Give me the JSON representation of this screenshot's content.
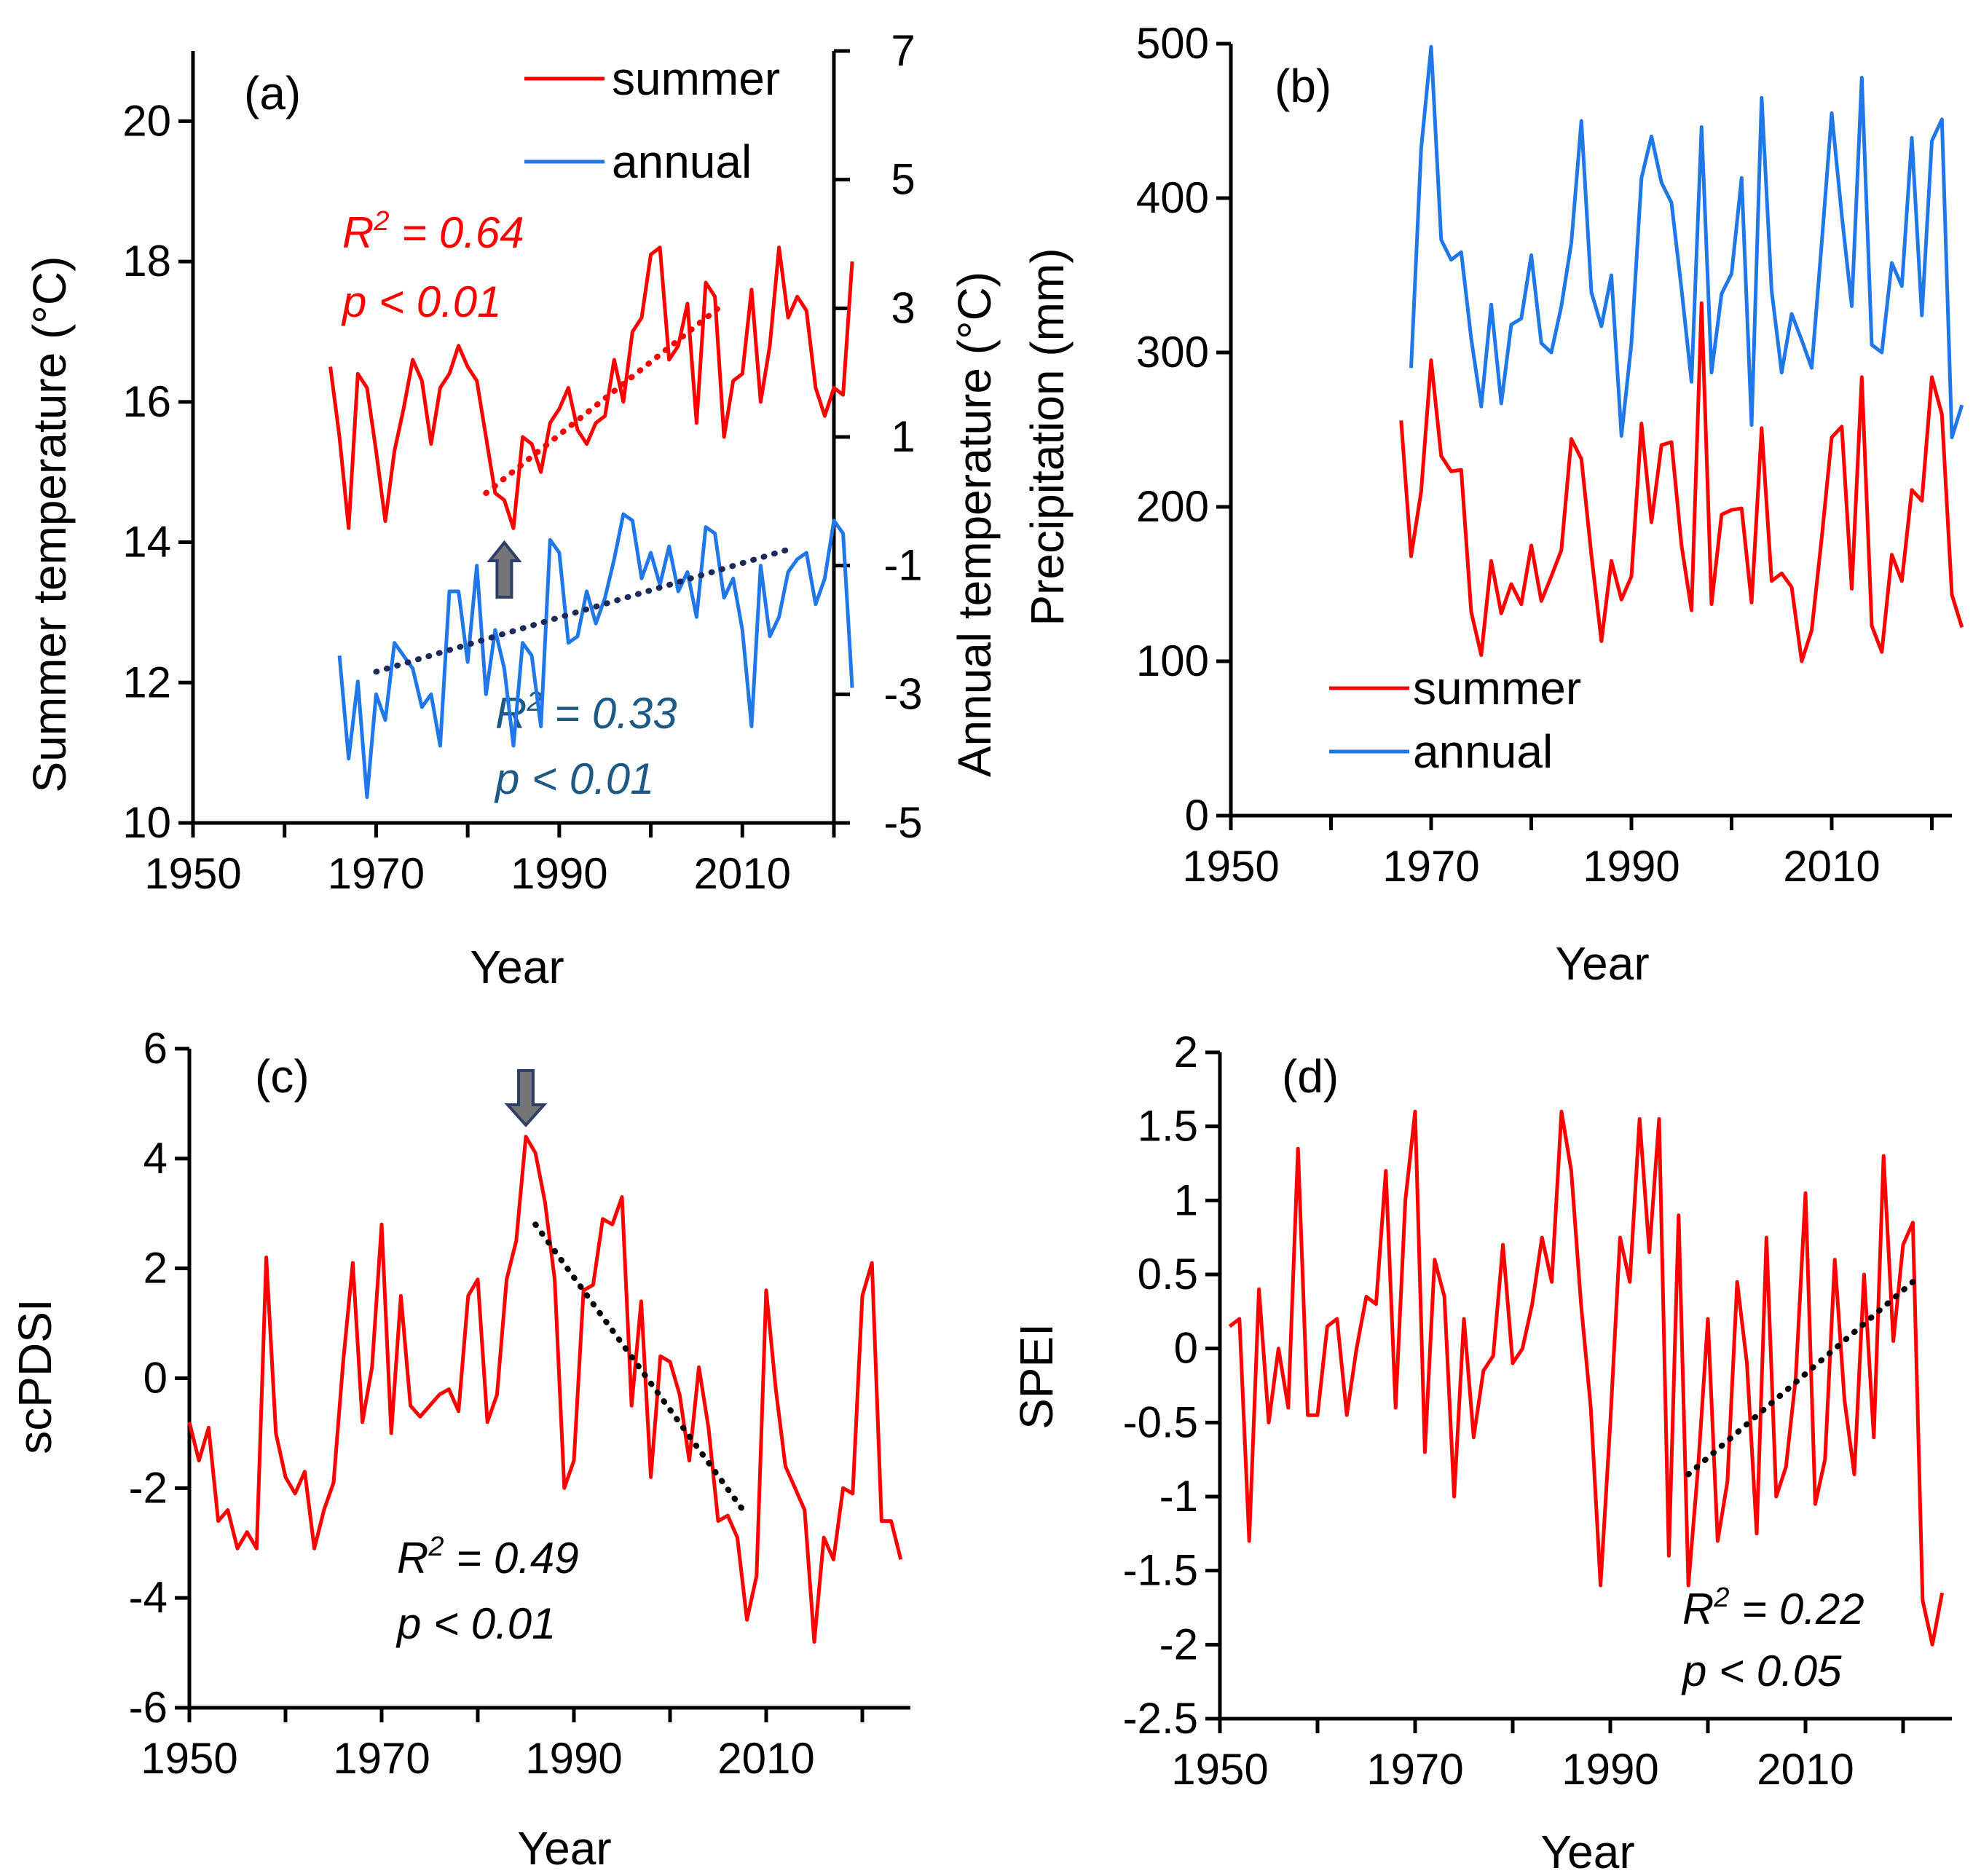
{
  "figure": {
    "description_colors": {
      "summer": "#ff0000",
      "annual": "#1f77e8",
      "trend_dark": "#1b2a5a",
      "annual_stat": "#1f5a86",
      "arrow": "#757575",
      "axis": "#000000"
    }
  },
  "chart_data": [
    {
      "id": "a",
      "type": "line",
      "panel_label": "(a)",
      "xlabel": "Year",
      "ylabel": "Summer temperature (°C)",
      "ylabel_right": "Annual temperature (°C)",
      "xlim": [
        1950,
        2020
      ],
      "ylim": [
        10,
        21
      ],
      "ylim_right": [
        -5,
        7
      ],
      "x_ticks": [
        "1950",
        "1970",
        "1990",
        "2010"
      ],
      "y_ticks": [
        "10",
        "12",
        "14",
        "16",
        "18",
        "20"
      ],
      "y_ticks_right": [
        "-5",
        "-3",
        "-1",
        "1",
        "3",
        "5",
        "7"
      ],
      "legend": [
        "summer",
        "annual"
      ],
      "series": [
        {
          "name": "summer",
          "axis": "left",
          "color": "#ff0000",
          "x": [
            1965,
            1966,
            1967,
            1968,
            1969,
            1970,
            1971,
            1972,
            1973,
            1974,
            1975,
            1976,
            1977,
            1978,
            1979,
            1980,
            1981,
            1982,
            1983,
            1984,
            1985,
            1986,
            1987,
            1988,
            1989,
            1990,
            1991,
            1992,
            1993,
            1994,
            1995,
            1996,
            1997,
            1998,
            1999,
            2000,
            2001,
            2002,
            2003,
            2004,
            2005,
            2006,
            2007,
            2008,
            2009,
            2010,
            2011,
            2012,
            2013,
            2014,
            2015,
            2016,
            2017,
            2018,
            2019,
            2020,
            2021,
            2022
          ],
          "y": [
            16.5,
            15.5,
            14.2,
            16.4,
            16.2,
            15.3,
            14.3,
            15.3,
            15.9,
            16.6,
            16.3,
            15.4,
            16.2,
            16.4,
            16.8,
            16.5,
            16.3,
            15.5,
            14.7,
            14.6,
            14.2,
            15.5,
            15.4,
            15.0,
            15.7,
            15.9,
            16.2,
            15.6,
            15.4,
            15.7,
            15.8,
            16.6,
            16.0,
            17.0,
            17.2,
            18.1,
            18.2,
            16.6,
            16.8,
            17.4,
            15.7,
            17.7,
            17.5,
            15.5,
            16.3,
            16.4,
            17.6,
            16.0,
            16.8,
            18.2,
            17.2,
            17.5,
            17.3,
            16.2,
            15.8,
            16.2,
            16.1,
            18.0
          ]
        },
        {
          "name": "annual",
          "axis": "right",
          "color": "#1f77e8",
          "x": [
            1966,
            1967,
            1968,
            1969,
            1970,
            1971,
            1972,
            1973,
            1974,
            1975,
            1976,
            1977,
            1978,
            1979,
            1980,
            1981,
            1982,
            1983,
            1984,
            1985,
            1986,
            1987,
            1988,
            1989,
            1990,
            1991,
            1992,
            1993,
            1994,
            1995,
            1996,
            1997,
            1998,
            1999,
            2000,
            2001,
            2002,
            2003,
            2004,
            2005,
            2006,
            2007,
            2008,
            2009,
            2010,
            2011,
            2012,
            2013,
            2014,
            2015,
            2016,
            2017,
            2018,
            2019,
            2020,
            2021,
            2022
          ],
          "y": [
            -2.4,
            -4.0,
            -2.8,
            -4.6,
            -3.0,
            -3.4,
            -2.2,
            -2.4,
            -2.6,
            -3.2,
            -3.0,
            -3.8,
            -1.4,
            -1.4,
            -2.5,
            -1.0,
            -3.0,
            -2.0,
            -2.6,
            -3.8,
            -2.2,
            -2.4,
            -3.5,
            -0.6,
            -0.8,
            -2.2,
            -2.1,
            -1.4,
            -1.9,
            -1.5,
            -0.9,
            -0.2,
            -0.3,
            -1.2,
            -0.8,
            -1.3,
            -0.7,
            -1.4,
            -1.1,
            -1.8,
            -0.4,
            -0.5,
            -1.5,
            -1.2,
            -2.0,
            -3.5,
            -1.0,
            -2.1,
            -1.8,
            -1.1,
            -0.9,
            -0.8,
            -1.6,
            -1.2,
            -0.3,
            -0.5,
            -2.9
          ]
        }
      ],
      "trends": [
        {
          "series": "summer",
          "x": [
            1982,
            2008
          ],
          "y": [
            14.7,
            17.4
          ],
          "color": "#ff0000"
        },
        {
          "series": "annual",
          "axis": "right",
          "x": [
            1970,
            2015
          ],
          "y": [
            -2.65,
            -0.75
          ],
          "color": "#1b2a5a"
        }
      ],
      "arrow": {
        "x": 1984,
        "direction": "up"
      },
      "stats": [
        {
          "r2": "0.64",
          "p": "p < 0.01",
          "color": "#ff0000"
        },
        {
          "r2": "0.33",
          "p": "p < 0.01",
          "color": "#1f5a86"
        }
      ]
    },
    {
      "id": "b",
      "type": "line",
      "panel_label": "(b)",
      "xlabel": "Year",
      "ylabel": "Precipitation (mm)",
      "xlim": [
        1950,
        2022
      ],
      "ylim": [
        0,
        500
      ],
      "x_ticks": [
        "1950",
        "1970",
        "1990",
        "2010"
      ],
      "y_ticks": [
        "0",
        "100",
        "200",
        "300",
        "400",
        "500"
      ],
      "legend": [
        "summer",
        "annual"
      ],
      "series": [
        {
          "name": "summer",
          "color": "#ff0000",
          "x": [
            1967,
            1968,
            1969,
            1970,
            1971,
            1972,
            1973,
            1974,
            1975,
            1976,
            1977,
            1978,
            1979,
            1980,
            1981,
            1982,
            1983,
            1984,
            1985,
            1986,
            1987,
            1988,
            1989,
            1990,
            1991,
            1992,
            1993,
            1994,
            1995,
            1996,
            1997,
            1998,
            1999,
            2000,
            2001,
            2002,
            2003,
            2004,
            2005,
            2006,
            2007,
            2008,
            2009,
            2010,
            2011,
            2012,
            2013,
            2014,
            2015,
            2016,
            2017,
            2018,
            2019,
            2020,
            2021,
            2022,
            2023
          ],
          "y": [
            256,
            168,
            210,
            295,
            233,
            223,
            224,
            132,
            104,
            165,
            131,
            150,
            137,
            175,
            139,
            155,
            172,
            244,
            231,
            169,
            113,
            165,
            140,
            155,
            254,
            190,
            240,
            242,
            175,
            133,
            332,
            137,
            195,
            198,
            199,
            138,
            251,
            152,
            157,
            148,
            100,
            120,
            180,
            245,
            252,
            147,
            284,
            123,
            106,
            169,
            152,
            211,
            204,
            284,
            260,
            143,
            122
          ]
        },
        {
          "name": "annual",
          "color": "#1f77e8",
          "x": [
            1968,
            1969,
            1970,
            1971,
            1972,
            1973,
            1974,
            1975,
            1976,
            1977,
            1978,
            1979,
            1980,
            1981,
            1982,
            1983,
            1984,
            1985,
            1986,
            1987,
            1988,
            1989,
            1990,
            1991,
            1992,
            1993,
            1994,
            1995,
            1996,
            1997,
            1998,
            1999,
            2000,
            2001,
            2002,
            2003,
            2004,
            2005,
            2006,
            2007,
            2008,
            2009,
            2010,
            2011,
            2012,
            2013,
            2014,
            2015,
            2016,
            2017,
            2018,
            2019,
            2020,
            2021,
            2022,
            2023
          ],
          "y": [
            290,
            432,
            498,
            373,
            360,
            365,
            309,
            265,
            331,
            267,
            318,
            322,
            363,
            306,
            300,
            330,
            371,
            450,
            339,
            317,
            350,
            246,
            306,
            413,
            440,
            410,
            397,
            341,
            281,
            446,
            287,
            338,
            351,
            413,
            253,
            465,
            340,
            287,
            325,
            308,
            290,
            371,
            455,
            389,
            330,
            478,
            305,
            300,
            358,
            343,
            439,
            324,
            437,
            451,
            245,
            266
          ]
        }
      ],
      "trends": []
    },
    {
      "id": "c",
      "type": "line",
      "panel_label": "(c)",
      "xlabel": "Year",
      "ylabel": "scPDSI",
      "xlim": [
        1950,
        2025
      ],
      "ylim": [
        -6,
        6
      ],
      "x_ticks": [
        "1950",
        "1970",
        "1990",
        "2010"
      ],
      "y_ticks": [
        "-6",
        "-4",
        "-2",
        "0",
        "2",
        "4",
        "6"
      ],
      "series": [
        {
          "name": "scPDSI",
          "color": "#ff0000",
          "x": [
            1950,
            1951,
            1952,
            1953,
            1954,
            1955,
            1956,
            1957,
            1958,
            1959,
            1960,
            1961,
            1962,
            1963,
            1964,
            1965,
            1966,
            1967,
            1968,
            1969,
            1970,
            1971,
            1972,
            1973,
            1974,
            1975,
            1976,
            1977,
            1978,
            1979,
            1980,
            1981,
            1982,
            1983,
            1984,
            1985,
            1986,
            1987,
            1988,
            1989,
            1990,
            1991,
            1992,
            1993,
            1994,
            1995,
            1996,
            1997,
            1998,
            1999,
            2000,
            2001,
            2002,
            2003,
            2004,
            2005,
            2006,
            2007,
            2008,
            2009,
            2010,
            2011,
            2012,
            2013,
            2014,
            2015,
            2016,
            2017,
            2018,
            2019,
            2020,
            2021,
            2022,
            2023,
            2024
          ],
          "y": [
            -0.8,
            -1.5,
            -0.9,
            -2.6,
            -2.4,
            -3.1,
            -2.8,
            -3.1,
            2.2,
            -1.0,
            -1.8,
            -2.1,
            -1.7,
            -3.1,
            -2.4,
            -1.9,
            0.3,
            2.1,
            -0.8,
            0.2,
            2.8,
            -1.0,
            1.5,
            -0.5,
            -0.7,
            -0.5,
            -0.3,
            -0.2,
            -0.6,
            1.5,
            1.8,
            -0.8,
            -0.3,
            1.8,
            2.5,
            4.4,
            4.1,
            3.2,
            1.8,
            -2.0,
            -1.5,
            1.6,
            1.7,
            2.9,
            2.8,
            3.3,
            -0.5,
            1.4,
            -1.8,
            0.4,
            0.3,
            -0.3,
            -1.5,
            0.2,
            -0.9,
            -2.6,
            -2.5,
            -2.9,
            -4.4,
            -3.6,
            1.6,
            -0.2,
            -1.6,
            -2.0,
            -2.4,
            -4.8,
            -2.9,
            -3.3,
            -2.0,
            -2.1,
            1.5,
            2.1,
            -2.6,
            -2.6,
            -3.3
          ]
        }
      ],
      "trends": [
        {
          "series": "scPDSI",
          "x": [
            1986,
            2008
          ],
          "y": [
            2.8,
            -2.5
          ],
          "color": "#000000"
        }
      ],
      "arrow": {
        "x": 1985,
        "direction": "down"
      },
      "stats": [
        {
          "r2": "0.49",
          "p": "p < 0.01",
          "color": "#000000"
        }
      ]
    },
    {
      "id": "d",
      "type": "line",
      "panel_label": "(d)",
      "xlabel": "Year",
      "ylabel": "SPEI",
      "xlim": [
        1950,
        2025
      ],
      "ylim": [
        -2.5,
        2
      ],
      "x_ticks": [
        "1950",
        "1970",
        "1990",
        "2010"
      ],
      "y_ticks": [
        "-2.5",
        "-2",
        "-1.5",
        "-1",
        "-0.5",
        "0",
        "0.5",
        "1",
        "1.5",
        "2"
      ],
      "series": [
        {
          "name": "SPEI",
          "color": "#ff0000",
          "x": [
            1951,
            1952,
            1953,
            1954,
            1955,
            1956,
            1957,
            1958,
            1959,
            1960,
            1961,
            1962,
            1963,
            1964,
            1965,
            1966,
            1967,
            1968,
            1969,
            1970,
            1971,
            1972,
            1973,
            1974,
            1975,
            1976,
            1977,
            1978,
            1979,
            1980,
            1981,
            1982,
            1983,
            1984,
            1985,
            1986,
            1987,
            1988,
            1989,
            1990,
            1991,
            1992,
            1993,
            1994,
            1995,
            1996,
            1997,
            1998,
            1999,
            2000,
            2001,
            2002,
            2003,
            2004,
            2005,
            2006,
            2007,
            2008,
            2009,
            2010,
            2011,
            2012,
            2013,
            2014,
            2015,
            2016,
            2017,
            2018,
            2019,
            2020,
            2021,
            2022,
            2023,
            2024
          ],
          "y": [
            0.15,
            0.2,
            -1.3,
            0.4,
            -0.5,
            0.0,
            -0.4,
            1.35,
            -0.45,
            -0.45,
            0.15,
            0.2,
            -0.45,
            0.0,
            0.35,
            0.3,
            1.2,
            -0.4,
            1.0,
            1.6,
            -0.7,
            0.6,
            0.35,
            -1.0,
            0.2,
            -0.6,
            -0.15,
            -0.05,
            0.7,
            -0.1,
            0.0,
            0.3,
            0.75,
            0.45,
            1.6,
            1.2,
            0.3,
            -0.4,
            -1.6,
            -0.5,
            0.75,
            0.45,
            1.55,
            0.65,
            1.55,
            -1.4,
            0.9,
            -1.6,
            -0.8,
            0.2,
            -1.3,
            -0.9,
            0.45,
            -0.1,
            -1.25,
            0.75,
            -1.0,
            -0.8,
            -0.2,
            1.05,
            -1.05,
            -0.75,
            0.6,
            -0.35,
            -0.85,
            0.5,
            -0.6,
            1.3,
            0.05,
            0.7,
            0.85,
            -1.7,
            -2.0,
            -1.65
          ]
        }
      ],
      "trends": [
        {
          "series": "SPEI",
          "x": [
            1998,
            2021
          ],
          "y": [
            -0.85,
            0.45
          ],
          "color": "#000000"
        }
      ],
      "stats": [
        {
          "r2": "0.22",
          "p": "p < 0.05",
          "color": "#000000"
        }
      ]
    }
  ]
}
